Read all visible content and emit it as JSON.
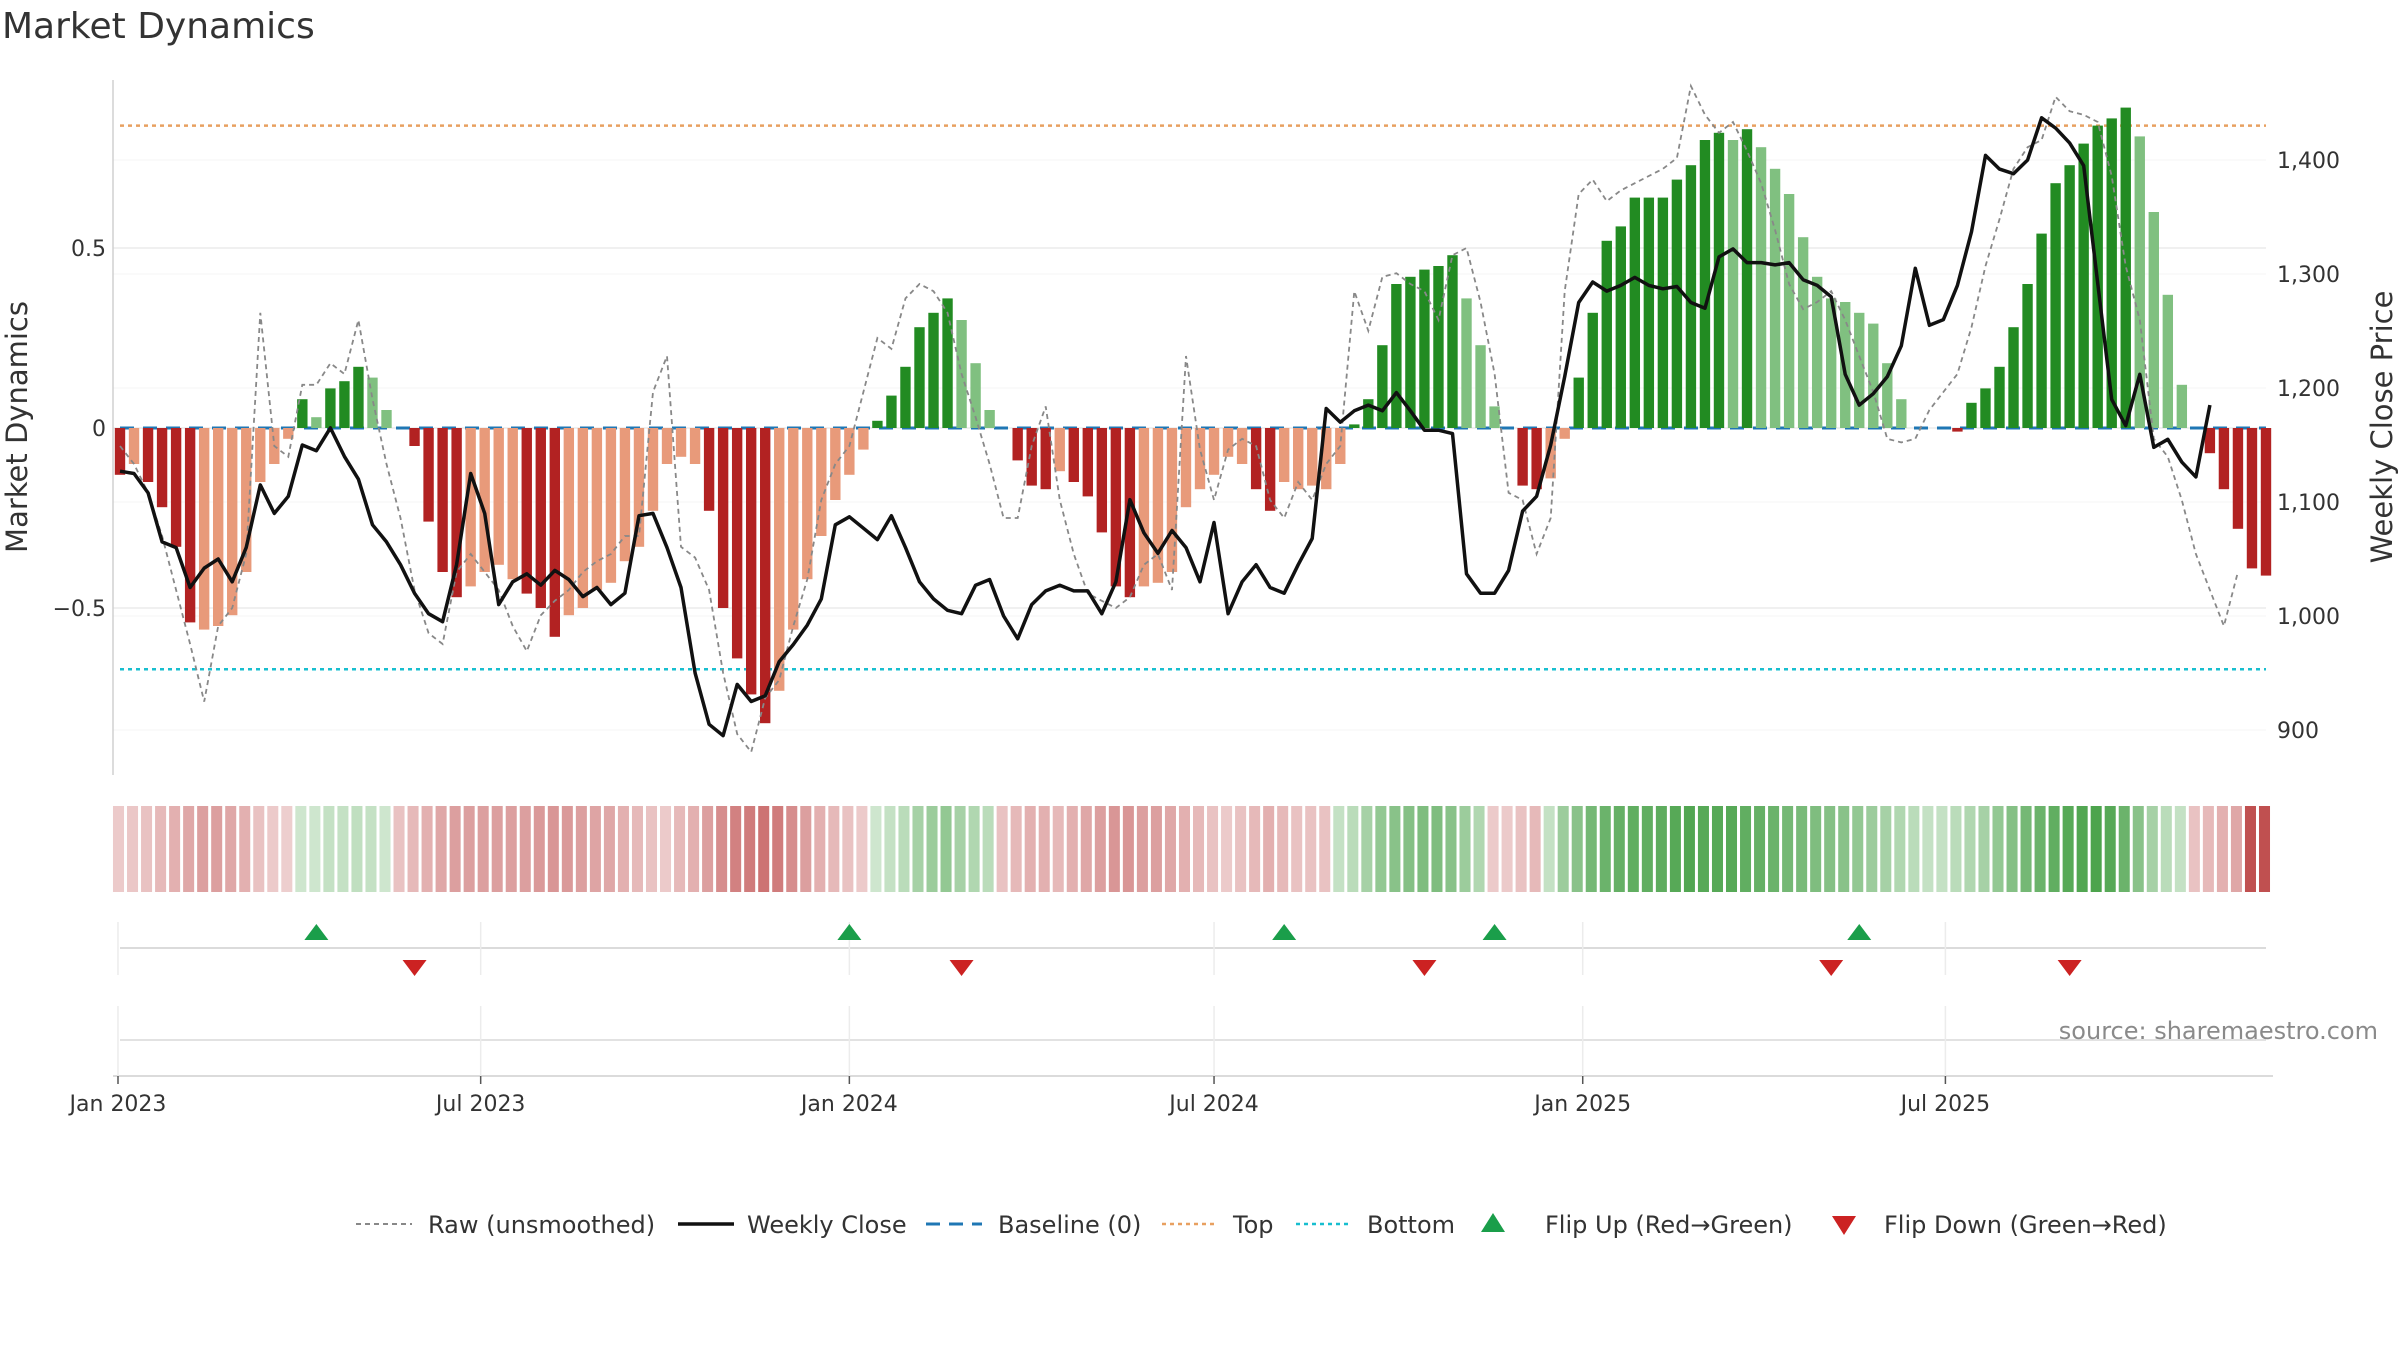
{
  "page": {
    "title": "Market Dynamics",
    "source": "source: sharemaestro.com"
  },
  "colors": {
    "strong_green": "#228b22",
    "light_green": "#80c080",
    "strong_red": "#b22222",
    "light_red": "#e89a7a",
    "raw_line": "#888888",
    "close_line": "#111111",
    "baseline": "#1f77b4",
    "top": "#e8a060",
    "bottom": "#17becf",
    "flip_up": "#1a9e4a",
    "flip_down": "#cc2222",
    "strip_green": "#3a9a3a",
    "strip_red": "#c05050"
  },
  "legend": {
    "raw": "Raw (unsmoothed)",
    "close": "Weekly Close",
    "baseline": "Baseline (0)",
    "top": "Top",
    "bottom": "Bottom",
    "flip_up": "Flip Up (Red→Green)",
    "flip_down": "Flip Down (Green→Red)"
  },
  "chart_data": {
    "type": "bar",
    "title": "Market Dynamics",
    "start_date": "2023-01-02",
    "frequency": "weekly",
    "x_ticks": [
      "Jan 2023",
      "Jul 2023",
      "Jan 2024",
      "Jul 2024",
      "Jan 2025",
      "Jul 2025"
    ],
    "left_axis": {
      "label": "Market Dynamics",
      "range": [
        -0.97,
        0.97
      ],
      "ticks": [
        -0.5,
        0,
        0.5
      ],
      "tick_labels": [
        "−0.5",
        "0",
        "0.5"
      ]
    },
    "right_axis": {
      "label": "Weekly Close Price",
      "range": [
        860,
        1470
      ],
      "ticks": [
        900,
        1000,
        1100,
        1200,
        1300,
        1400
      ],
      "tick_labels": [
        "900",
        "1,000",
        "1,100",
        "1,200",
        "1,300",
        "1,400"
      ]
    },
    "top_level": 0.84,
    "bottom_level": -0.67,
    "baseline": 0,
    "series": [
      {
        "name": "Market Dynamics",
        "values": [
          -0.13,
          -0.1,
          -0.15,
          -0.22,
          -0.33,
          -0.54,
          -0.56,
          -0.55,
          -0.52,
          -0.4,
          -0.15,
          -0.1,
          -0.03,
          0.08,
          0.03,
          0.11,
          0.13,
          0.17,
          0.14,
          0.05,
          0,
          -0.05,
          -0.26,
          -0.4,
          -0.47,
          -0.44,
          -0.4,
          -0.38,
          -0.42,
          -0.46,
          -0.5,
          -0.58,
          -0.52,
          -0.5,
          -0.45,
          -0.43,
          -0.37,
          -0.33,
          -0.23,
          -0.1,
          -0.08,
          -0.1,
          -0.23,
          -0.5,
          -0.64,
          -0.74,
          -0.82,
          -0.73,
          -0.56,
          -0.42,
          -0.3,
          -0.2,
          -0.13,
          -0.06,
          0.02,
          0.09,
          0.17,
          0.28,
          0.32,
          0.36,
          0.3,
          0.18,
          0.05,
          0,
          -0.09,
          -0.16,
          -0.17,
          -0.12,
          -0.15,
          -0.19,
          -0.29,
          -0.44,
          -0.47,
          -0.44,
          -0.43,
          -0.4,
          -0.22,
          -0.17,
          -0.13,
          -0.08,
          -0.1,
          -0.17,
          -0.23,
          -0.15,
          -0.17,
          -0.16,
          -0.17,
          -0.1,
          0.01,
          0.08,
          0.23,
          0.4,
          0.42,
          0.44,
          0.45,
          0.48,
          0.36,
          0.23,
          0.06,
          0,
          -0.16,
          -0.17,
          -0.14,
          -0.03,
          0.14,
          0.32,
          0.52,
          0.56,
          0.64,
          0.64,
          0.64,
          0.69,
          0.73,
          0.8,
          0.82,
          0.8,
          0.83,
          0.78,
          0.72,
          0.65,
          0.53,
          0.42,
          0.36,
          0.35,
          0.32,
          0.29,
          0.18,
          0.08,
          0,
          0,
          0,
          -0.01,
          0.07,
          0.11,
          0.17,
          0.28,
          0.4,
          0.54,
          0.68,
          0.73,
          0.79,
          0.84,
          0.86,
          0.89,
          0.81,
          0.6,
          0.37,
          0.12,
          0,
          -0.07,
          -0.17,
          -0.28,
          -0.39,
          -0.41
        ],
        "tones": [
          "s",
          "l",
          "s",
          "s",
          "s",
          "s",
          "l",
          "l",
          "l",
          "l",
          "l",
          "l",
          "l",
          "s",
          "l",
          "s",
          "s",
          "s",
          "l",
          "l",
          "s",
          "s",
          "s",
          "s",
          "s",
          "l",
          "l",
          "l",
          "l",
          "s",
          "s",
          "s",
          "l",
          "l",
          "l",
          "l",
          "l",
          "l",
          "l",
          "l",
          "l",
          "l",
          "s",
          "s",
          "s",
          "s",
          "s",
          "l",
          "l",
          "l",
          "l",
          "l",
          "l",
          "l",
          "s",
          "s",
          "s",
          "s",
          "s",
          "s",
          "l",
          "l",
          "l",
          "s",
          "s",
          "s",
          "s",
          "l",
          "s",
          "s",
          "s",
          "s",
          "s",
          "l",
          "l",
          "l",
          "l",
          "l",
          "l",
          "l",
          "l",
          "s",
          "s",
          "l",
          "l",
          "l",
          "l",
          "l",
          "s",
          "s",
          "s",
          "s",
          "s",
          "s",
          "s",
          "s",
          "l",
          "l",
          "l",
          "s",
          "s",
          "s",
          "l",
          "l",
          "s",
          "s",
          "s",
          "s",
          "s",
          "s",
          "s",
          "s",
          "s",
          "s",
          "s",
          "l",
          "s",
          "l",
          "l",
          "l",
          "l",
          "l",
          "l",
          "l",
          "l",
          "l",
          "l",
          "l",
          "s",
          "l",
          "s",
          "s",
          "s",
          "s",
          "s",
          "s",
          "s",
          "s",
          "s",
          "s",
          "s",
          "s",
          "s",
          "s",
          "l",
          "l",
          "l",
          "l",
          "s",
          "s",
          "s",
          "s",
          "s",
          "s",
          "s"
        ]
      },
      {
        "name": "Weekly Close",
        "values": [
          1127,
          1125,
          1108,
          1065,
          1060,
          1025,
          1042,
          1050,
          1030,
          1060,
          1115,
          1090,
          1105,
          1150,
          1145,
          1165,
          1140,
          1120,
          1080,
          1065,
          1045,
          1020,
          1002,
          995,
          1045,
          1125,
          1090,
          1010,
          1030,
          1037,
          1027,
          1040,
          1032,
          1017,
          1025,
          1010,
          1020,
          1088,
          1090,
          1060,
          1025,
          950,
          905,
          895,
          940,
          925,
          930,
          960,
          975,
          992,
          1015,
          1080,
          1087,
          1077,
          1067,
          1088,
          1060,
          1030,
          1015,
          1005,
          1002,
          1027,
          1032,
          1000,
          980,
          1010,
          1022,
          1027,
          1022,
          1022,
          1002,
          1030,
          1102,
          1073,
          1055,
          1075,
          1060,
          1030,
          1082,
          1002,
          1030,
          1045,
          1025,
          1020,
          1045,
          1068,
          1182,
          1170,
          1180,
          1185,
          1180,
          1196,
          1180,
          1163,
          1163,
          1160,
          1037,
          1020,
          1020,
          1040,
          1092,
          1105,
          1150,
          1210,
          1275,
          1293,
          1285,
          1290,
          1297,
          1290,
          1287,
          1289,
          1275,
          1270,
          1315,
          1322,
          1310,
          1310,
          1308,
          1310,
          1295,
          1290,
          1280,
          1212,
          1185,
          1195,
          1210,
          1237,
          1305,
          1255,
          1260,
          1290,
          1337,
          1404,
          1392,
          1388,
          1400,
          1437,
          1428,
          1415,
          1395,
          1292,
          1190,
          1167,
          1212,
          1148,
          1155,
          1135,
          1122,
          1185
        ]
      },
      {
        "name": "Raw (unsmoothed)",
        "values": [
          -0.05,
          -0.1,
          -0.18,
          -0.3,
          -0.45,
          -0.6,
          -0.76,
          -0.55,
          -0.5,
          -0.35,
          0.32,
          -0.05,
          -0.08,
          0.12,
          0.12,
          0.18,
          0.15,
          0.3,
          0.08,
          -0.1,
          -0.25,
          -0.45,
          -0.57,
          -0.6,
          -0.4,
          -0.35,
          -0.4,
          -0.45,
          -0.55,
          -0.62,
          -0.52,
          -0.48,
          -0.45,
          -0.4,
          -0.37,
          -0.35,
          -0.3,
          -0.3,
          0.1,
          0.2,
          -0.33,
          -0.36,
          -0.45,
          -0.68,
          -0.85,
          -0.9,
          -0.75,
          -0.7,
          -0.55,
          -0.42,
          -0.2,
          -0.1,
          -0.05,
          0.1,
          0.25,
          0.22,
          0.36,
          0.4,
          0.38,
          0.32,
          0.15,
          0.03,
          -0.1,
          -0.25,
          -0.25,
          -0.05,
          0.06,
          -0.2,
          -0.35,
          -0.46,
          -0.48,
          -0.5,
          -0.47,
          -0.38,
          -0.35,
          -0.45,
          0.2,
          -0.06,
          -0.2,
          -0.06,
          -0.03,
          -0.05,
          -0.2,
          -0.25,
          -0.15,
          -0.2,
          -0.1,
          -0.05,
          0.38,
          0.27,
          0.42,
          0.43,
          0.4,
          0.38,
          0.3,
          0.48,
          0.5,
          0.35,
          0.15,
          -0.18,
          -0.2,
          -0.35,
          -0.25,
          0.38,
          0.65,
          0.69,
          0.63,
          0.66,
          0.68,
          0.7,
          0.72,
          0.75,
          0.95,
          0.87,
          0.82,
          0.85,
          0.77,
          0.68,
          0.55,
          0.4,
          0.33,
          0.35,
          0.38,
          0.3,
          0.2,
          0.1,
          -0.03,
          -0.04,
          -0.03,
          0.05,
          0.1,
          0.15,
          0.28,
          0.45,
          0.58,
          0.72,
          0.78,
          0.8,
          0.92,
          0.88,
          0.87,
          0.85,
          0.7,
          0.45,
          0.3,
          -0.03,
          -0.08,
          -0.2,
          -0.35,
          -0.45,
          -0.55,
          -0.4
        ]
      }
    ],
    "strip": {
      "colors": [
        "r",
        "r",
        "r",
        "r",
        "r",
        "r",
        "r",
        "r",
        "r",
        "r",
        "r",
        "r",
        "r",
        "g",
        "g",
        "g",
        "g",
        "g",
        "g",
        "g",
        "r",
        "r",
        "r",
        "r",
        "r",
        "r",
        "r",
        "r",
        "r",
        "r",
        "r",
        "r",
        "r",
        "r",
        "r",
        "r",
        "r",
        "r",
        "r",
        "r",
        "r",
        "r",
        "r",
        "r",
        "r",
        "r",
        "r",
        "r",
        "r",
        "r",
        "r",
        "r",
        "r",
        "r",
        "g",
        "g",
        "g",
        "g",
        "g",
        "g",
        "g",
        "g",
        "g",
        "r",
        "r",
        "r",
        "r",
        "r",
        "r",
        "r",
        "r",
        "r",
        "r",
        "r",
        "r",
        "r",
        "r",
        "r",
        "r",
        "r",
        "r",
        "r",
        "r",
        "r",
        "r",
        "r",
        "r",
        "g",
        "g",
        "g",
        "g",
        "g",
        "g",
        "g",
        "g",
        "g",
        "g",
        "g",
        "r",
        "r",
        "r",
        "r",
        "g",
        "g",
        "g",
        "g",
        "g",
        "g",
        "g",
        "g",
        "g",
        "g",
        "g",
        "g",
        "g",
        "g",
        "g",
        "g",
        "g",
        "g",
        "g",
        "g",
        "g",
        "g",
        "g",
        "g",
        "g",
        "g",
        "g",
        "g",
        "g",
        "g",
        "g",
        "g",
        "g",
        "g",
        "g",
        "g",
        "g",
        "g",
        "g",
        "g",
        "g",
        "g",
        "g",
        "g",
        "g",
        "g",
        "r",
        "r",
        "r",
        "r",
        "r",
        "r"
      ],
      "intensity": [
        0.3,
        0.32,
        0.35,
        0.4,
        0.45,
        0.5,
        0.55,
        0.55,
        0.5,
        0.45,
        0.35,
        0.3,
        0.28,
        0.25,
        0.25,
        0.3,
        0.3,
        0.32,
        0.3,
        0.25,
        0.35,
        0.4,
        0.45,
        0.5,
        0.55,
        0.55,
        0.55,
        0.55,
        0.55,
        0.55,
        0.58,
        0.6,
        0.58,
        0.55,
        0.52,
        0.5,
        0.45,
        0.4,
        0.35,
        0.3,
        0.4,
        0.45,
        0.55,
        0.65,
        0.72,
        0.75,
        0.8,
        0.75,
        0.65,
        0.55,
        0.45,
        0.4,
        0.35,
        0.3,
        0.25,
        0.3,
        0.35,
        0.45,
        0.5,
        0.55,
        0.45,
        0.4,
        0.35,
        0.35,
        0.4,
        0.45,
        0.45,
        0.4,
        0.45,
        0.5,
        0.55,
        0.6,
        0.6,
        0.55,
        0.55,
        0.5,
        0.45,
        0.4,
        0.35,
        0.3,
        0.35,
        0.4,
        0.45,
        0.4,
        0.35,
        0.35,
        0.35,
        0.3,
        0.35,
        0.45,
        0.55,
        0.6,
        0.62,
        0.65,
        0.65,
        0.6,
        0.5,
        0.4,
        0.3,
        0.3,
        0.35,
        0.4,
        0.3,
        0.5,
        0.6,
        0.7,
        0.75,
        0.78,
        0.8,
        0.8,
        0.82,
        0.85,
        0.88,
        0.85,
        0.85,
        0.85,
        0.8,
        0.78,
        0.75,
        0.7,
        0.68,
        0.65,
        0.62,
        0.6,
        0.55,
        0.5,
        0.45,
        0.4,
        0.35,
        0.3,
        0.3,
        0.35,
        0.4,
        0.45,
        0.55,
        0.62,
        0.7,
        0.75,
        0.8,
        0.85,
        0.88,
        0.9,
        0.85,
        0.75,
        0.6,
        0.45,
        0.35,
        0.3,
        0.35,
        0.4,
        0.45,
        0.5
      ]
    },
    "flip_up_weeks": [
      14,
      52,
      83,
      98,
      124
    ],
    "flip_down_weeks": [
      21,
      60,
      93,
      122,
      139
    ],
    "legend_position": "bottom-center",
    "grid": true
  }
}
